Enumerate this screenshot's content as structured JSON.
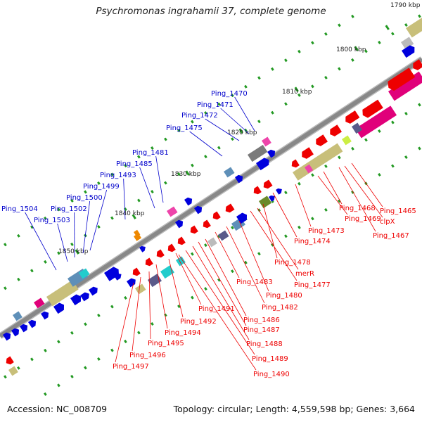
{
  "title": "Psychromonas ingrahamii 37, complete genome",
  "footer": {
    "accession": "Accession: NC_008709",
    "summary": "Topology: circular; Length: 4,559,598 bp; Genes: 3,664"
  },
  "colors": {
    "forward_label": "#0000cc",
    "reverse_label": "#ee0000",
    "forward_gene": "#0000dd",
    "reverse_gene": "#ee0000",
    "backbone": "#888888",
    "ticks": "#229922",
    "block_olive": "#c8bf7a",
    "block_pink": "#e0007a",
    "block_magenta": "#ee44aa",
    "block_steel": "#5e8fb8",
    "block_grey": "#7a7a7a",
    "block_slate": "#5a5a8a",
    "block_green": "#6a8a2a",
    "block_orange": "#ee8800",
    "block_cyan": "#22cccc",
    "block_lime": "#ccee44",
    "block_light": "#bbbbbb"
  },
  "tick_labels": [
    "1790 kbp",
    "1800 kbp",
    "1810 kbp",
    "1820 kbp",
    "1830 kbp",
    "1840 kbp",
    "1850 kbp"
  ],
  "forward_labels": [
    "Ping_1470",
    "Ping_1471",
    "Ping_1472",
    "Ping_1475",
    "Ping_1481",
    "Ping_1485",
    "Ping_1493",
    "Ping_1499",
    "Ping_1500",
    "Ping_1502",
    "Ping_1503",
    "Ping_1504"
  ],
  "reverse_labels": [
    "Ping_1465",
    "clpX",
    "Ping_1467",
    "Ping_1468",
    "Ping_1469",
    "Ping_1473",
    "Ping_1474",
    "Ping_1478",
    "merR",
    "Ping_1477",
    "Ping_1480",
    "Ping_1482",
    "Ping_1483",
    "Ping_1486",
    "Ping_1487",
    "Ping_1488",
    "Ping_1489",
    "Ping_1490",
    "Ping_1491",
    "Ping_1492",
    "Ping_1494",
    "Ping_1495",
    "Ping_1496",
    "Ping_1497"
  ]
}
